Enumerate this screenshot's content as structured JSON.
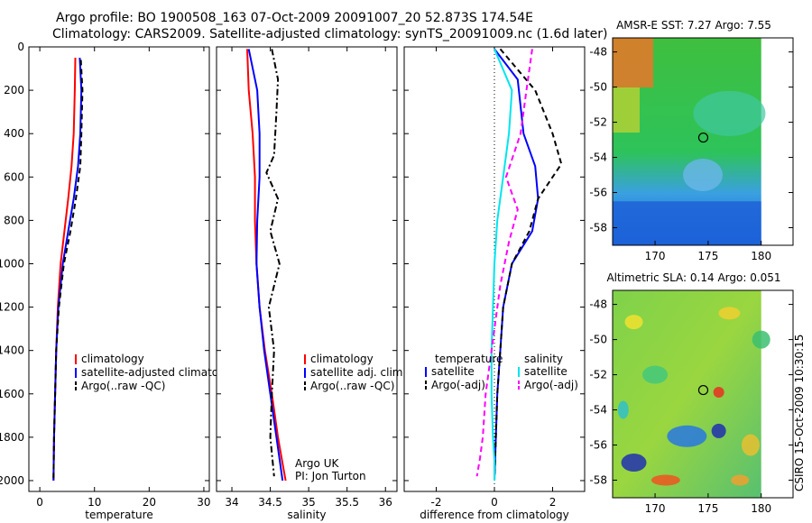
{
  "header": {
    "line1": "Argo profile: BO 1900508_163 07-Oct-2009 20091007_20 52.873S 174.54E",
    "line2": "Climatology: CARS2009. Satellite-adjusted climatology: synTS_20091009.nc (1.6d later)"
  },
  "side_stamp": "CSIRO 15-Oct-2009 10:30:15",
  "colors": {
    "climatology": "#ff0000",
    "satellite": "#0000ff",
    "argo": "#000000",
    "sal_sat": "#00e5ee",
    "sal_argo": "#ff00ff"
  },
  "chart_data": [
    {
      "type": "line",
      "xlabel": "temperature",
      "xlim": [
        -2,
        31
      ],
      "ylim": [
        0,
        2050
      ],
      "xticks": [
        "0",
        "10",
        "20",
        "30"
      ],
      "yticks": [
        "0",
        "200",
        "400",
        "600",
        "800",
        "1000",
        "1200",
        "1400",
        "1600",
        "1800",
        "2000"
      ],
      "legend": [
        "climatology",
        "satellite-adjusted climatology",
        "Argo(..raw -QC)"
      ],
      "series": [
        {
          "name": "climatology",
          "color": "#ff0000",
          "style": "solid",
          "x": [
            6.5,
            6.4,
            6.2,
            5.8,
            5.2,
            4.5,
            3.8,
            3.3,
            3.0,
            2.8,
            2.6,
            2.5
          ],
          "y": [
            50,
            200,
            400,
            550,
            700,
            850,
            1000,
            1200,
            1400,
            1600,
            1800,
            2000
          ]
        },
        {
          "name": "satellite-adjusted climatology",
          "color": "#0000ff",
          "style": "solid",
          "x": [
            7.3,
            7.6,
            7.4,
            7.0,
            6.2,
            5.2,
            4.2,
            3.4,
            3.0,
            2.8,
            2.6,
            2.5
          ],
          "y": [
            50,
            200,
            400,
            550,
            700,
            850,
            1000,
            1200,
            1400,
            1600,
            1800,
            2000
          ]
        },
        {
          "name": "Argo(..raw -QC)",
          "color": "#000000",
          "style": "dash",
          "x": [
            7.5,
            7.8,
            7.6,
            7.4,
            6.6,
            5.6,
            4.4,
            3.5,
            3.0,
            2.8,
            2.6,
            2.5
          ],
          "y": [
            60,
            200,
            400,
            550,
            700,
            850,
            1000,
            1200,
            1400,
            1600,
            1800,
            2000
          ]
        }
      ]
    },
    {
      "type": "line",
      "xlabel": "salinity",
      "xlim": [
        33.8,
        36.15
      ],
      "ylim": [
        0,
        2050
      ],
      "xticks": [
        "34",
        "34.5",
        "35",
        "35.5",
        "36"
      ],
      "legend": [
        "climatology",
        "satellite adj. clim.",
        "Argo(..raw -QC)"
      ],
      "annotation": [
        "Argo UK",
        "PI: Jon Turton"
      ],
      "series": [
        {
          "name": "climatology",
          "color": "#ff0000",
          "style": "solid",
          "x": [
            34.2,
            34.22,
            34.27,
            34.3,
            34.3,
            34.32,
            34.36,
            34.43,
            34.52,
            34.6,
            34.65,
            34.7
          ],
          "y": [
            10,
            200,
            400,
            600,
            800,
            1000,
            1200,
            1400,
            1600,
            1800,
            1900,
            2000
          ]
        },
        {
          "name": "satellite adj. clim.",
          "color": "#0000ff",
          "style": "solid",
          "x": [
            34.22,
            34.33,
            34.36,
            34.36,
            34.33,
            34.32,
            34.36,
            34.42,
            34.5,
            34.58,
            34.62,
            34.66
          ],
          "y": [
            10,
            200,
            400,
            600,
            800,
            1000,
            1200,
            1400,
            1600,
            1800,
            1900,
            2000
          ]
        },
        {
          "name": "Argo(..raw -QC)",
          "color": "#000000",
          "style": "dashdot",
          "x": [
            34.52,
            34.6,
            34.58,
            34.55,
            34.45,
            34.6,
            34.5,
            34.62,
            34.48,
            34.55,
            34.52,
            34.5,
            34.55
          ],
          "y": [
            10,
            150,
            300,
            500,
            580,
            700,
            850,
            1000,
            1200,
            1400,
            1600,
            1800,
            1980
          ]
        }
      ]
    },
    {
      "type": "line",
      "xlabel": "difference from climatology",
      "xlim": [
        -3.1,
        3.1
      ],
      "ylim": [
        0,
        2050
      ],
      "xticks": [
        "-2",
        "0",
        "2"
      ],
      "legend_left_title": "temperature",
      "legend_right_title": "salinity",
      "legend_left": [
        "satellite",
        "Argo(-adj)"
      ],
      "legend_right": [
        "satellite",
        "Argo(-adj)"
      ],
      "series": [
        {
          "name": "temperature satellite",
          "color": "#0000ff",
          "style": "solid",
          "x": [
            0.0,
            0.8,
            1.0,
            1.4,
            1.5,
            1.3,
            0.6,
            0.3,
            0.2,
            0.1,
            0.05,
            0.0
          ],
          "y": [
            10,
            150,
            400,
            550,
            700,
            850,
            1000,
            1200,
            1400,
            1600,
            1800,
            2000
          ]
        },
        {
          "name": "temperature Argo(-adj)",
          "color": "#000000",
          "style": "dash",
          "x": [
            0.2,
            1.4,
            2.0,
            2.3,
            1.5,
            1.2,
            0.6,
            0.3,
            0.2,
            0.1,
            0.05,
            0.0
          ],
          "y": [
            10,
            200,
            400,
            540,
            700,
            850,
            1000,
            1200,
            1400,
            1600,
            1800,
            2000
          ]
        },
        {
          "name": "salinity satellite",
          "color": "#00e5ee",
          "style": "solid",
          "x": [
            0.0,
            0.6,
            0.5,
            0.3,
            0.1,
            0.0,
            -0.05,
            -0.1,
            -0.1,
            -0.05,
            0.0,
            0.0
          ],
          "y": [
            10,
            200,
            400,
            600,
            800,
            1000,
            1200,
            1400,
            1600,
            1800,
            1900,
            2000
          ]
        },
        {
          "name": "salinity Argo(-adj)",
          "color": "#ff00ff",
          "style": "dash",
          "x": [
            1.3,
            1.1,
            0.9,
            0.4,
            0.8,
            0.5,
            0.2,
            -0.1,
            -0.3,
            -0.4,
            -0.5,
            -0.6
          ],
          "y": [
            10,
            200,
            400,
            600,
            750,
            900,
            1100,
            1400,
            1600,
            1800,
            1900,
            1980
          ]
        }
      ]
    },
    {
      "type": "heatmap",
      "title": "AMSR-E SST: 7.27 Argo: 7.55",
      "xlim": [
        166,
        183
      ],
      "ylim": [
        -59,
        -47.2
      ],
      "xticks": [
        "170",
        "175",
        "180"
      ],
      "yticks": [
        "-48",
        "-50",
        "-52",
        "-54",
        "-56",
        "-58"
      ],
      "marker": {
        "lon": 174.54,
        "lat": -52.873
      }
    },
    {
      "type": "heatmap",
      "title": "Altimetric SLA: 0.14 Argo: 0.051",
      "xlim": [
        166,
        183
      ],
      "ylim": [
        -59,
        -47.2
      ],
      "xticks": [
        "170",
        "175",
        "180"
      ],
      "yticks": [
        "-48",
        "-50",
        "-52",
        "-54",
        "-56",
        "-58"
      ],
      "marker": {
        "lon": 174.54,
        "lat": -52.873
      }
    }
  ]
}
